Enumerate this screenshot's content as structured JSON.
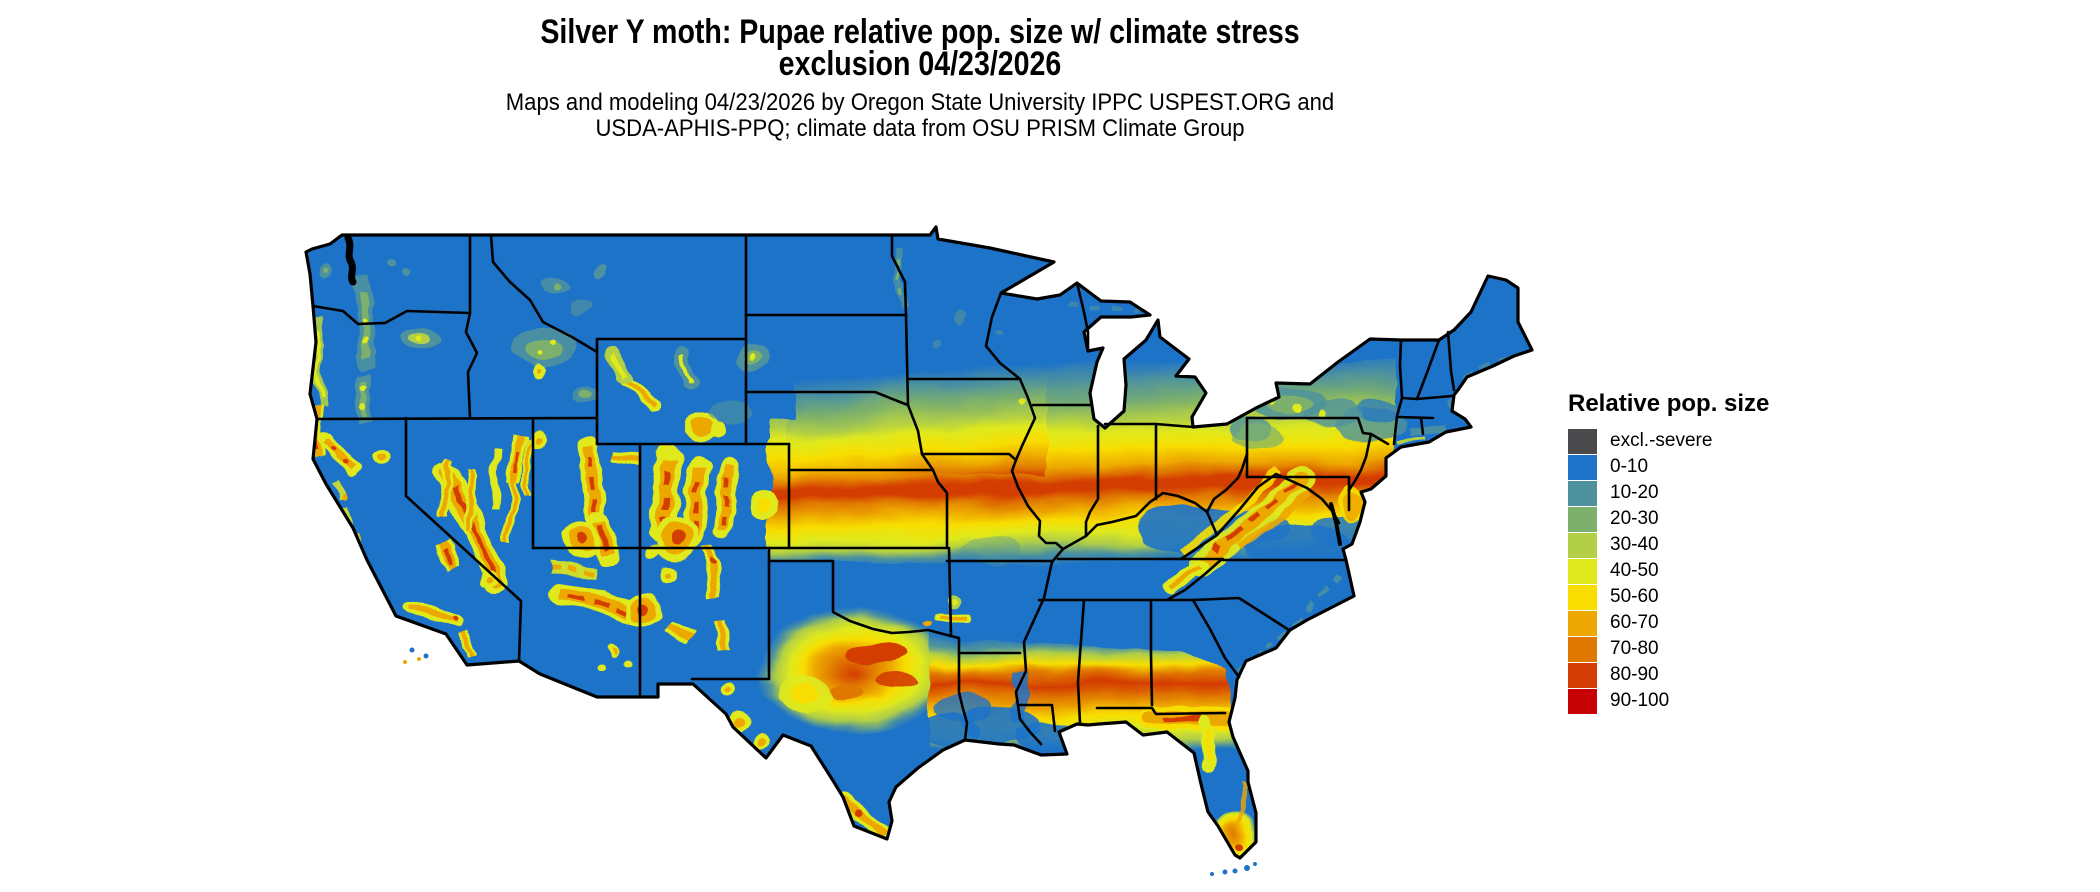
{
  "header": {
    "title_line1": "Silver Y moth: Pupae relative pop. size w/ climate stress",
    "title_line2": "exclusion 04/23/2026",
    "subtitle_line1": "Maps and modeling 04/23/2026 by Oregon State University IPPC USPEST.ORG and",
    "subtitle_line2": "USDA-APHIS-PPQ; climate data from OSU PRISM Climate Group"
  },
  "legend": {
    "title": "Relative pop. size",
    "items": [
      {
        "label": "excl.-severe",
        "color": "#4a4a4d"
      },
      {
        "label": "0-10",
        "color": "#1e73c8"
      },
      {
        "label": "10-20",
        "color": "#4d929e"
      },
      {
        "label": "20-30",
        "color": "#7cb06c"
      },
      {
        "label": "30-40",
        "color": "#b2cf45"
      },
      {
        "label": "40-50",
        "color": "#dfe91d"
      },
      {
        "label": "50-60",
        "color": "#f8de00"
      },
      {
        "label": "60-70",
        "color": "#eda803"
      },
      {
        "label": "70-80",
        "color": "#e07800"
      },
      {
        "label": "80-90",
        "color": "#d43c05"
      },
      {
        "label": "90-100",
        "color": "#c60204"
      }
    ]
  },
  "map": {
    "region": "Continental United States",
    "base_color": "#1e73c8",
    "state_border_color": "#000000"
  }
}
